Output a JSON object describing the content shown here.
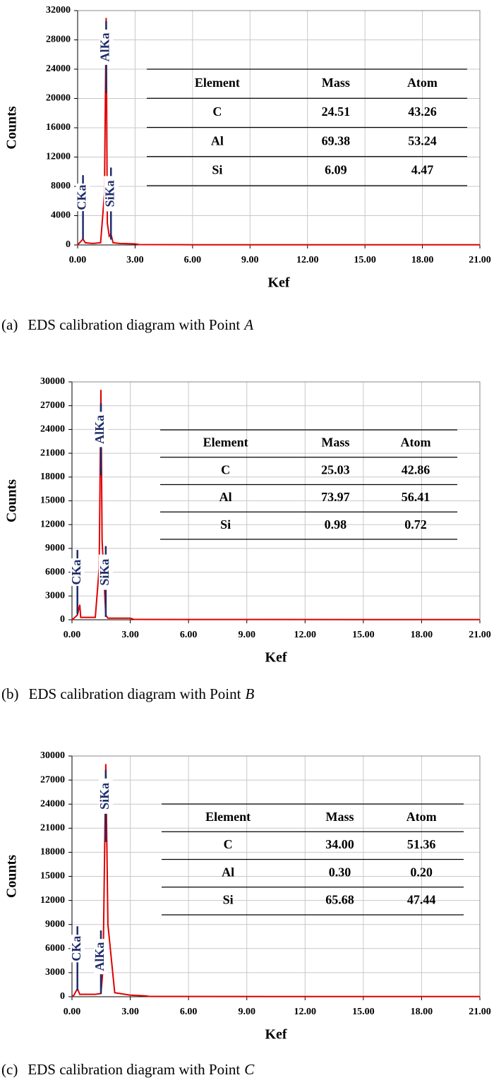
{
  "chart_data": [
    {
      "type": "line",
      "y_label": "Counts",
      "x_label": "Kef",
      "xlim": [
        0,
        21
      ],
      "ylim": [
        0,
        32000
      ],
      "xticks": [
        {
          "value": 0,
          "label": "0.00"
        },
        {
          "value": 3,
          "label": "3.00"
        },
        {
          "value": 6,
          "label": "6.00"
        },
        {
          "value": 9,
          "label": "9.00"
        },
        {
          "value": 12,
          "label": "12.00"
        },
        {
          "value": 15,
          "label": "15.00"
        },
        {
          "value": 18,
          "label": "18.00"
        },
        {
          "value": 21,
          "label": "21.00"
        }
      ],
      "yticks": [
        0,
        4000,
        8000,
        12000,
        16000,
        20000,
        24000,
        28000,
        32000
      ],
      "grid": true,
      "color": "#e00000",
      "x": [
        0,
        0.1,
        0.28,
        0.4,
        0.8,
        1.2,
        1.4,
        1.49,
        1.55,
        1.65,
        1.74,
        1.85,
        2.2,
        3.0,
        3.2,
        6,
        21
      ],
      "values": [
        0,
        300,
        800,
        300,
        200,
        300,
        7000,
        31000,
        3000,
        1200,
        1500,
        300,
        200,
        150,
        50,
        30,
        20
      ],
      "annotations": [
        {
          "text": "CKa",
          "x": 0.28,
          "y": 6500
        },
        {
          "text": "AlKa",
          "x": 1.49,
          "y": 27000
        },
        {
          "text": "SiKa",
          "x": 1.74,
          "y": 7000
        }
      ],
      "table": {
        "header": [
          "Element",
          "Mass",
          "Atom"
        ],
        "rows": [
          [
            "C",
            "24.51",
            "43.26"
          ],
          [
            "Al",
            "69.38",
            "53.24"
          ],
          [
            "Si",
            "6.09",
            "4.47"
          ]
        ]
      },
      "caption": {
        "label": "(a)",
        "text": "EDS calibration diagram with Point",
        "point": "A"
      }
    },
    {
      "type": "line",
      "y_label": "Counts",
      "x_label": "Kef",
      "xlim": [
        0,
        21
      ],
      "ylim": [
        0,
        30000
      ],
      "xticks": [
        {
          "value": 0,
          "label": "0.00"
        },
        {
          "value": 3,
          "label": "3.00"
        },
        {
          "value": 6,
          "label": "6.00"
        },
        {
          "value": 9,
          "label": "9.00"
        },
        {
          "value": 12,
          "label": "12.00"
        },
        {
          "value": 15,
          "label": "15.00"
        },
        {
          "value": 18,
          "label": "18.00"
        },
        {
          "value": 21,
          "label": "21.00"
        }
      ],
      "yticks": [
        0,
        3000,
        6000,
        9000,
        12000,
        15000,
        18000,
        21000,
        24000,
        27000,
        30000
      ],
      "grid": true,
      "color": "#e00000",
      "x": [
        0,
        0.1,
        0.28,
        0.4,
        0.45,
        0.8,
        1.2,
        1.4,
        1.49,
        1.55,
        1.74,
        1.85,
        2.5,
        3.0,
        3.2,
        21
      ],
      "values": [
        0,
        200,
        600,
        1900,
        300,
        300,
        300,
        6500,
        29000,
        10000,
        600,
        200,
        200,
        200,
        40,
        20
      ],
      "annotations": [
        {
          "text": "CKa",
          "x": 0.28,
          "y": 6000
        },
        {
          "text": "AlKa",
          "x": 1.49,
          "y": 24000
        },
        {
          "text": "SiKa",
          "x": 1.74,
          "y": 6000
        }
      ],
      "table": {
        "header": [
          "Element",
          "Mass",
          "Atom"
        ],
        "rows": [
          [
            "C",
            "25.03",
            "42.86"
          ],
          [
            "Al",
            "73.97",
            "56.41"
          ],
          [
            "Si",
            "0.98",
            "0.72"
          ]
        ]
      },
      "caption": {
        "label": "(b)",
        "text": "EDS calibration diagram with Point",
        "point": "B"
      }
    },
    {
      "type": "line",
      "y_label": "Counts",
      "x_label": "Kef",
      "xlim": [
        0,
        21
      ],
      "ylim": [
        0,
        30000
      ],
      "xticks": [
        {
          "value": 0,
          "label": "0.00"
        },
        {
          "value": 3,
          "label": "3.00"
        },
        {
          "value": 6,
          "label": "6.00"
        },
        {
          "value": 9,
          "label": "9.00"
        },
        {
          "value": 12,
          "label": "12.00"
        },
        {
          "value": 15,
          "label": "15.00"
        },
        {
          "value": 18,
          "label": "18.00"
        },
        {
          "value": 21,
          "label": "21.00"
        }
      ],
      "yticks": [
        0,
        3000,
        6000,
        9000,
        12000,
        15000,
        18000,
        21000,
        24000,
        27000,
        30000
      ],
      "grid": true,
      "color": "#e00000",
      "x": [
        0,
        0.1,
        0.28,
        0.4,
        0.8,
        1.2,
        1.49,
        1.6,
        1.74,
        1.85,
        2.2,
        3.0,
        3.8,
        4.0,
        21
      ],
      "values": [
        0,
        200,
        1000,
        300,
        300,
        300,
        400,
        3500,
        29000,
        9000,
        500,
        200,
        100,
        30,
        20
      ],
      "annotations": [
        {
          "text": "CKa",
          "x": 0.28,
          "y": 6000
        },
        {
          "text": "AlKa",
          "x": 1.49,
          "y": 5000
        },
        {
          "text": "SiKa",
          "x": 1.74,
          "y": 25000
        }
      ],
      "table": {
        "header": [
          "Element",
          "Mass",
          "Atom"
        ],
        "rows": [
          [
            "C",
            "34.00",
            "51.36"
          ],
          [
            "Al",
            "0.30",
            "0.20"
          ],
          [
            "Si",
            "65.68",
            "47.44"
          ]
        ]
      },
      "caption": {
        "label": "(c)",
        "text": "EDS calibration diagram with Point",
        "point": "C"
      }
    }
  ]
}
